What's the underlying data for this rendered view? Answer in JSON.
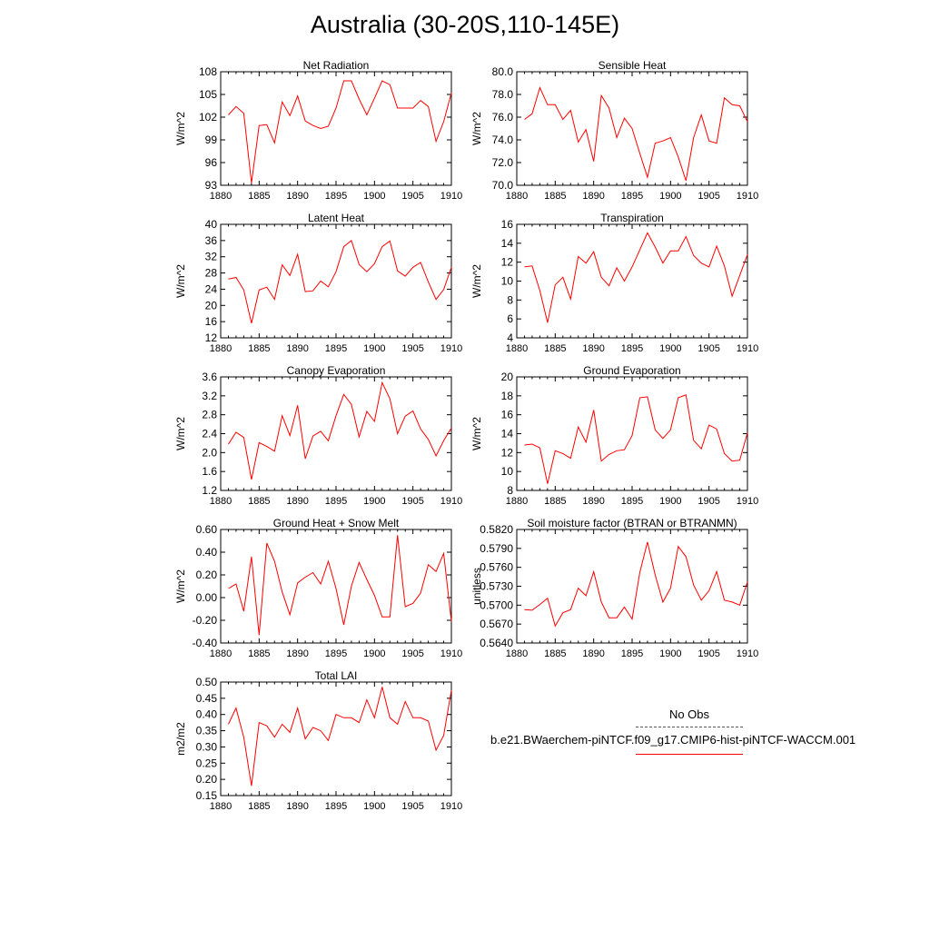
{
  "title": "Australia (30-20S,110-145E)",
  "legend": {
    "obs_label": "No Obs",
    "case_label": "b.e21.BWaerchem-piNTCF.f09_g17.CMIP6-hist-piNTCF-WACCM.001",
    "case_color": "#ff0000",
    "obs_color": "#555555"
  },
  "chart_data": [
    {
      "type": "line",
      "title": "Net Radiation",
      "ylabel": "W/m^2",
      "xlim": [
        1880,
        1910
      ],
      "ylim": [
        93,
        108
      ],
      "yticks": [
        "93",
        "96",
        "99",
        "102",
        "105",
        "108"
      ],
      "xticks": [
        "1880",
        "1885",
        "1890",
        "1895",
        "1900",
        "1905",
        "1910"
      ],
      "x": [
        1881,
        1882,
        1883,
        1884,
        1885,
        1886,
        1887,
        1888,
        1889,
        1890,
        1891,
        1892,
        1893,
        1894,
        1895,
        1896,
        1897,
        1898,
        1899,
        1900,
        1901,
        1902,
        1903,
        1904,
        1905,
        1906,
        1907,
        1908,
        1909,
        1910
      ],
      "series": [
        {
          "values": [
            102.3,
            103.4,
            102.5,
            93.3,
            100.9,
            101.0,
            98.6,
            104.0,
            102.2,
            104.8,
            101.5,
            100.9,
            100.5,
            100.8,
            103.2,
            106.8,
            106.8,
            104.4,
            102.3,
            104.5,
            106.8,
            106.3,
            103.2,
            103.2,
            103.2,
            104.2,
            103.4,
            98.8,
            101.4,
            105.2
          ],
          "color": "#ff0000"
        }
      ]
    },
    {
      "type": "line",
      "title": "Sensible Heat",
      "ylabel": "W/m^2",
      "xlim": [
        1880,
        1910
      ],
      "ylim": [
        70,
        80
      ],
      "yticks": [
        "70.0",
        "72.0",
        "74.0",
        "76.0",
        "78.0",
        "80.0"
      ],
      "xticks": [
        "1880",
        "1885",
        "1890",
        "1895",
        "1900",
        "1905",
        "1910"
      ],
      "x": [
        1881,
        1882,
        1883,
        1884,
        1885,
        1886,
        1887,
        1888,
        1889,
        1890,
        1891,
        1892,
        1893,
        1894,
        1895,
        1896,
        1897,
        1898,
        1899,
        1900,
        1901,
        1902,
        1903,
        1904,
        1905,
        1906,
        1907,
        1908,
        1909,
        1910
      ],
      "series": [
        {
          "values": [
            75.8,
            76.3,
            78.6,
            77.1,
            77.1,
            75.8,
            76.6,
            73.8,
            74.9,
            72.1,
            77.9,
            76.8,
            74.2,
            75.9,
            75.0,
            72.8,
            70.7,
            73.7,
            73.9,
            74.2,
            72.5,
            70.4,
            74.2,
            76.2,
            73.9,
            73.7,
            77.7,
            77.1,
            77.0,
            75.6
          ],
          "color": "#ff0000"
        }
      ]
    },
    {
      "type": "line",
      "title": "Latent Heat",
      "ylabel": "W/m^2",
      "xlim": [
        1880,
        1910
      ],
      "ylim": [
        12,
        40
      ],
      "yticks": [
        "12",
        "16",
        "20",
        "24",
        "28",
        "32",
        "36",
        "40"
      ],
      "xticks": [
        "1880",
        "1885",
        "1890",
        "1895",
        "1900",
        "1905",
        "1910"
      ],
      "x": [
        1881,
        1882,
        1883,
        1884,
        1885,
        1886,
        1887,
        1888,
        1889,
        1890,
        1891,
        1892,
        1893,
        1894,
        1895,
        1896,
        1897,
        1898,
        1899,
        1900,
        1901,
        1902,
        1903,
        1904,
        1905,
        1906,
        1907,
        1908,
        1909,
        1910
      ],
      "series": [
        {
          "values": [
            26.5,
            26.9,
            23.8,
            15.6,
            23.8,
            24.5,
            21.5,
            30.0,
            27.4,
            32.6,
            23.4,
            23.6,
            26.0,
            24.6,
            28.3,
            34.5,
            36.0,
            30.1,
            28.3,
            30.3,
            34.5,
            35.9,
            28.5,
            27.2,
            29.4,
            30.6,
            25.8,
            21.5,
            23.9,
            29.4
          ],
          "color": "#ff0000"
        }
      ]
    },
    {
      "type": "line",
      "title": "Transpiration",
      "ylabel": "W/m^2",
      "xlim": [
        1880,
        1910
      ],
      "ylim": [
        4,
        16
      ],
      "yticks": [
        "4",
        "6",
        "8",
        "10",
        "12",
        "14",
        "16"
      ],
      "xticks": [
        "1880",
        "1885",
        "1890",
        "1895",
        "1900",
        "1905",
        "1910"
      ],
      "x": [
        1881,
        1882,
        1883,
        1884,
        1885,
        1886,
        1887,
        1888,
        1889,
        1890,
        1891,
        1892,
        1893,
        1894,
        1895,
        1896,
        1897,
        1898,
        1899,
        1900,
        1901,
        1902,
        1903,
        1904,
        1905,
        1906,
        1907,
        1908,
        1909,
        1910
      ],
      "series": [
        {
          "values": [
            11.5,
            11.6,
            9.0,
            5.6,
            9.6,
            10.4,
            8.1,
            12.6,
            11.9,
            13.1,
            10.4,
            9.5,
            11.4,
            10.0,
            11.5,
            13.3,
            15.1,
            13.6,
            11.9,
            13.2,
            13.2,
            14.7,
            12.7,
            11.9,
            11.5,
            13.7,
            11.6,
            8.4,
            10.6,
            12.8
          ],
          "color": "#ff0000"
        }
      ]
    },
    {
      "type": "line",
      "title": "Canopy Evaporation",
      "ylabel": "W/m^2",
      "xlim": [
        1880,
        1910
      ],
      "ylim": [
        1.2,
        3.6
      ],
      "yticks": [
        "1.2",
        "1.6",
        "2.0",
        "2.4",
        "2.8",
        "3.2",
        "3.6"
      ],
      "xticks": [
        "1880",
        "1885",
        "1890",
        "1895",
        "1900",
        "1905",
        "1910"
      ],
      "x": [
        1881,
        1882,
        1883,
        1884,
        1885,
        1886,
        1887,
        1888,
        1889,
        1890,
        1891,
        1892,
        1893,
        1894,
        1895,
        1896,
        1897,
        1898,
        1899,
        1900,
        1901,
        1902,
        1903,
        1904,
        1905,
        1906,
        1907,
        1908,
        1909,
        1910
      ],
      "series": [
        {
          "values": [
            2.18,
            2.43,
            2.32,
            1.43,
            2.21,
            2.13,
            2.03,
            2.78,
            2.36,
            3.0,
            1.87,
            2.35,
            2.45,
            2.25,
            2.78,
            3.23,
            3.02,
            2.33,
            2.87,
            2.66,
            3.48,
            3.14,
            2.4,
            2.77,
            2.88,
            2.5,
            2.28,
            1.93,
            2.25,
            2.52
          ],
          "color": "#ff0000"
        }
      ]
    },
    {
      "type": "line",
      "title": "Ground Evaporation",
      "ylabel": "W/m^2",
      "xlim": [
        1880,
        1910
      ],
      "ylim": [
        8,
        20
      ],
      "yticks": [
        "8",
        "10",
        "12",
        "14",
        "16",
        "18",
        "20"
      ],
      "xticks": [
        "1880",
        "1885",
        "1890",
        "1895",
        "1900",
        "1905",
        "1910"
      ],
      "x": [
        1881,
        1882,
        1883,
        1884,
        1885,
        1886,
        1887,
        1888,
        1889,
        1890,
        1891,
        1892,
        1893,
        1894,
        1895,
        1896,
        1897,
        1898,
        1899,
        1900,
        1901,
        1902,
        1903,
        1904,
        1905,
        1906,
        1907,
        1908,
        1909,
        1910
      ],
      "series": [
        {
          "values": [
            12.8,
            12.9,
            12.5,
            8.7,
            12.2,
            11.9,
            11.4,
            14.7,
            13.1,
            16.5,
            11.1,
            11.8,
            12.2,
            12.3,
            13.8,
            17.8,
            17.9,
            14.4,
            13.5,
            14.4,
            17.8,
            18.1,
            13.3,
            12.4,
            14.9,
            14.5,
            11.9,
            11.1,
            11.2,
            14.1
          ],
          "color": "#ff0000"
        }
      ]
    },
    {
      "type": "line",
      "title": "Ground Heat + Snow Melt",
      "ylabel": "W/m^2",
      "xlim": [
        1880,
        1910
      ],
      "ylim": [
        -0.4,
        0.6
      ],
      "yticks": [
        "-0.40",
        "-0.20",
        "0.00",
        "0.20",
        "0.40",
        "0.60"
      ],
      "xticks": [
        "1880",
        "1885",
        "1890",
        "1895",
        "1900",
        "1905",
        "1910"
      ],
      "x": [
        1881,
        1882,
        1883,
        1884,
        1885,
        1886,
        1887,
        1888,
        1889,
        1890,
        1891,
        1892,
        1893,
        1894,
        1895,
        1896,
        1897,
        1898,
        1899,
        1900,
        1901,
        1902,
        1903,
        1904,
        1905,
        1906,
        1907,
        1908,
        1909,
        1910
      ],
      "series": [
        {
          "values": [
            0.08,
            0.12,
            -0.12,
            0.36,
            -0.33,
            0.48,
            0.32,
            0.05,
            -0.15,
            0.13,
            0.18,
            0.22,
            0.12,
            0.32,
            0.08,
            -0.24,
            0.1,
            0.31,
            0.16,
            0.02,
            -0.17,
            -0.17,
            0.55,
            -0.08,
            -0.05,
            0.04,
            0.29,
            0.23,
            0.39,
            -0.21
          ],
          "color": "#ff0000"
        }
      ]
    },
    {
      "type": "line",
      "title": "Soil moisture factor (BTRAN or BTRANMN)",
      "ylabel": "unitless",
      "xlim": [
        1880,
        1910
      ],
      "ylim": [
        0.564,
        0.582
      ],
      "yticks": [
        "0.5640",
        "0.5670",
        "0.5700",
        "0.5730",
        "0.5760",
        "0.5790",
        "0.5820"
      ],
      "xticks": [
        "1880",
        "1885",
        "1890",
        "1895",
        "1900",
        "1905",
        "1910"
      ],
      "x": [
        1881,
        1882,
        1883,
        1884,
        1885,
        1886,
        1887,
        1888,
        1889,
        1890,
        1891,
        1892,
        1893,
        1894,
        1895,
        1896,
        1897,
        1898,
        1899,
        1900,
        1901,
        1902,
        1903,
        1904,
        1905,
        1906,
        1907,
        1908,
        1909,
        1910
      ],
      "series": [
        {
          "values": [
            0.5693,
            0.5692,
            0.5701,
            0.5711,
            0.5667,
            0.5688,
            0.5693,
            0.5727,
            0.5715,
            0.5753,
            0.5705,
            0.568,
            0.568,
            0.5697,
            0.5678,
            0.5752,
            0.58,
            0.5748,
            0.5705,
            0.5727,
            0.5793,
            0.5777,
            0.5732,
            0.5708,
            0.5723,
            0.5753,
            0.5708,
            0.5705,
            0.57,
            0.5737
          ],
          "color": "#ff0000"
        }
      ]
    },
    {
      "type": "line",
      "title": "Total LAI",
      "ylabel": "m2/m2",
      "xlim": [
        1880,
        1910
      ],
      "ylim": [
        0.15,
        0.5
      ],
      "yticks": [
        "0.15",
        "0.20",
        "0.25",
        "0.30",
        "0.35",
        "0.40",
        "0.45",
        "0.50"
      ],
      "xticks": [
        "1880",
        "1885",
        "1890",
        "1895",
        "1900",
        "1905",
        "1910"
      ],
      "x": [
        1881,
        1882,
        1883,
        1884,
        1885,
        1886,
        1887,
        1888,
        1889,
        1890,
        1891,
        1892,
        1893,
        1894,
        1895,
        1896,
        1897,
        1898,
        1899,
        1900,
        1901,
        1902,
        1903,
        1904,
        1905,
        1906,
        1907,
        1908,
        1909,
        1910
      ],
      "series": [
        {
          "values": [
            0.37,
            0.42,
            0.33,
            0.18,
            0.375,
            0.365,
            0.33,
            0.37,
            0.345,
            0.42,
            0.325,
            0.36,
            0.35,
            0.32,
            0.4,
            0.39,
            0.39,
            0.375,
            0.445,
            0.39,
            0.485,
            0.39,
            0.37,
            0.44,
            0.39,
            0.39,
            0.38,
            0.29,
            0.335,
            0.475
          ],
          "color": "#ff0000"
        }
      ]
    }
  ]
}
